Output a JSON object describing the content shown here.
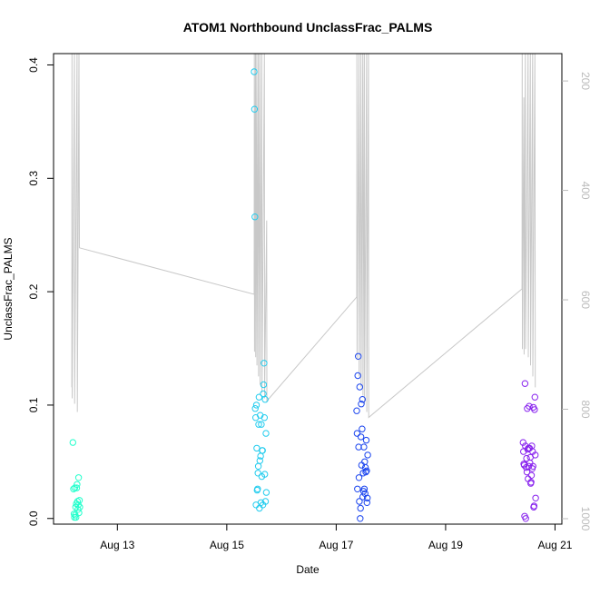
{
  "chart_data": {
    "type": "scatter",
    "title": "ATOM1 Northbound UnclassFrac_PALMS",
    "xlabel": "Date",
    "ylabel": "UnclassFrac_PALMS",
    "x_axis": {
      "type": "date",
      "range": [
        "2016-08-11T20:00",
        "2016-08-21T03:00"
      ],
      "ticks": [
        {
          "value": "2016-08-13",
          "label": "Aug 13"
        },
        {
          "value": "2016-08-15",
          "label": "Aug 15"
        },
        {
          "value": "2016-08-17",
          "label": "Aug 17"
        },
        {
          "value": "2016-08-19",
          "label": "Aug 19"
        },
        {
          "value": "2016-08-21",
          "label": "Aug 21"
        }
      ]
    },
    "y_axis": {
      "range": [
        -0.005,
        0.41
      ],
      "ticks": [
        {
          "value": 0.0,
          "label": "0.0"
        },
        {
          "value": 0.1,
          "label": "0.1"
        },
        {
          "value": 0.2,
          "label": "0.2"
        },
        {
          "value": 0.3,
          "label": "0.3"
        },
        {
          "value": 0.4,
          "label": "0.4"
        }
      ]
    },
    "y2_axis": {
      "reversed": true,
      "range": [
        1010,
        150
      ],
      "color": "#bbbbbb",
      "ticks": [
        {
          "value": 200,
          "label": "200"
        },
        {
          "value": 400,
          "label": "400"
        },
        {
          "value": 600,
          "label": "600"
        },
        {
          "value": 800,
          "label": "800"
        },
        {
          "value": 1000,
          "label": "1000"
        }
      ]
    },
    "grid": false,
    "legend": "none",
    "series": [
      {
        "color": "#22ffcc",
        "points": [
          [
            "2016-08-12T04:30",
            0.067
          ],
          [
            "2016-08-12T04:45",
            0.026
          ],
          [
            "2016-08-12T05:00",
            0.004
          ],
          [
            "2016-08-12T05:10",
            0.001
          ],
          [
            "2016-08-12T05:20",
            0.027
          ],
          [
            "2016-08-12T05:30",
            0.003
          ],
          [
            "2016-08-12T05:40",
            0.01
          ],
          [
            "2016-08-12T05:50",
            0.001
          ],
          [
            "2016-08-12T06:00",
            0.013
          ],
          [
            "2016-08-12T06:10",
            0.027
          ],
          [
            "2016-08-12T06:20",
            0.03
          ],
          [
            "2016-08-12T06:30",
            0.015
          ],
          [
            "2016-08-12T06:40",
            0.008
          ],
          [
            "2016-08-12T06:50",
            0.012
          ],
          [
            "2016-08-12T07:00",
            0.036
          ],
          [
            "2016-08-12T07:10",
            0.005
          ],
          [
            "2016-08-12T07:20",
            0.016
          ],
          [
            "2016-08-12T07:30",
            0.01
          ]
        ]
      },
      {
        "color": "#22ccee",
        "points": [
          [
            "2016-08-15T12:00",
            0.394
          ],
          [
            "2016-08-15T12:10",
            0.361
          ],
          [
            "2016-08-15T12:20",
            0.266
          ],
          [
            "2016-08-15T12:30",
            0.097
          ],
          [
            "2016-08-15T12:40",
            0.089
          ],
          [
            "2016-08-15T12:50",
            0.012
          ],
          [
            "2016-08-15T13:00",
            0.1
          ],
          [
            "2016-08-15T13:10",
            0.062
          ],
          [
            "2016-08-15T13:20",
            0.025
          ],
          [
            "2016-08-15T13:30",
            0.026
          ],
          [
            "2016-08-15T13:40",
            0.04
          ],
          [
            "2016-08-15T13:50",
            0.046
          ],
          [
            "2016-08-15T14:00",
            0.083
          ],
          [
            "2016-08-15T14:10",
            0.107
          ],
          [
            "2016-08-15T14:20",
            0.009
          ],
          [
            "2016-08-15T14:30",
            0.051
          ],
          [
            "2016-08-15T14:40",
            0.091
          ],
          [
            "2016-08-15T14:50",
            0.055
          ],
          [
            "2016-08-15T15:00",
            0.014
          ],
          [
            "2016-08-15T15:10",
            0.083
          ],
          [
            "2016-08-15T15:20",
            0.037
          ],
          [
            "2016-08-15T15:30",
            0.06
          ],
          [
            "2016-08-15T15:40",
            0.06
          ],
          [
            "2016-08-15T15:50",
            0.012
          ],
          [
            "2016-08-15T16:00",
            0.11
          ],
          [
            "2016-08-15T16:10",
            0.118
          ],
          [
            "2016-08-15T16:20",
            0.137
          ],
          [
            "2016-08-15T16:30",
            0.089
          ],
          [
            "2016-08-15T16:40",
            0.039
          ],
          [
            "2016-08-15T16:50",
            0.105
          ],
          [
            "2016-08-15T17:00",
            0.015
          ],
          [
            "2016-08-15T17:10",
            0.075
          ],
          [
            "2016-08-15T17:20",
            0.023
          ]
        ]
      },
      {
        "color": "#1a44ee",
        "points": [
          [
            "2016-08-17T09:00",
            0.095
          ],
          [
            "2016-08-17T09:10",
            0.075
          ],
          [
            "2016-08-17T09:20",
            0.026
          ],
          [
            "2016-08-17T09:30",
            0.126
          ],
          [
            "2016-08-17T09:40",
            0.143
          ],
          [
            "2016-08-17T09:50",
            0.063
          ],
          [
            "2016-08-17T10:00",
            0.036
          ],
          [
            "2016-08-17T10:10",
            0.015
          ],
          [
            "2016-08-17T10:20",
            0.116
          ],
          [
            "2016-08-17T10:30",
            0.0
          ],
          [
            "2016-08-17T10:40",
            0.009
          ],
          [
            "2016-08-17T10:50",
            0.072
          ],
          [
            "2016-08-17T11:00",
            0.101
          ],
          [
            "2016-08-17T11:10",
            0.047
          ],
          [
            "2016-08-17T11:20",
            0.079
          ],
          [
            "2016-08-17T11:30",
            0.105
          ],
          [
            "2016-08-17T11:40",
            0.019
          ],
          [
            "2016-08-17T11:50",
            0.04
          ],
          [
            "2016-08-17T12:00",
            0.024
          ],
          [
            "2016-08-17T12:10",
            0.063
          ],
          [
            "2016-08-17T12:20",
            0.026
          ],
          [
            "2016-08-17T12:30",
            0.05
          ],
          [
            "2016-08-17T12:40",
            0.022
          ],
          [
            "2016-08-17T12:50",
            0.045
          ],
          [
            "2016-08-17T13:00",
            0.041
          ],
          [
            "2016-08-17T13:10",
            0.069
          ],
          [
            "2016-08-17T13:20",
            0.042
          ],
          [
            "2016-08-17T13:30",
            0.014
          ],
          [
            "2016-08-17T13:40",
            0.018
          ],
          [
            "2016-08-17T13:50",
            0.056
          ]
        ]
      },
      {
        "color": "#8822ee",
        "points": [
          [
            "2016-08-20T10:00",
            0.067
          ],
          [
            "2016-08-20T10:10",
            0.059
          ],
          [
            "2016-08-20T10:20",
            0.048
          ],
          [
            "2016-08-20T10:30",
            0.047
          ],
          [
            "2016-08-20T10:40",
            0.002
          ],
          [
            "2016-08-20T10:50",
            0.119
          ],
          [
            "2016-08-20T11:00",
            0.064
          ],
          [
            "2016-08-20T11:10",
            0.0
          ],
          [
            "2016-08-20T11:20",
            0.045
          ],
          [
            "2016-08-20T11:30",
            0.053
          ],
          [
            "2016-08-20T11:40",
            0.041
          ],
          [
            "2016-08-20T11:50",
            0.097
          ],
          [
            "2016-08-20T12:00",
            0.061
          ],
          [
            "2016-08-20T12:10",
            0.035
          ],
          [
            "2016-08-20T12:20",
            0.062
          ],
          [
            "2016-08-20T12:30",
            0.046
          ],
          [
            "2016-08-20T12:40",
            0.099
          ],
          [
            "2016-08-20T12:50",
            0.062
          ],
          [
            "2016-08-20T13:00",
            0.049
          ],
          [
            "2016-08-20T13:10",
            0.054
          ],
          [
            "2016-08-20T13:20",
            0.031
          ],
          [
            "2016-08-20T13:30",
            0.032
          ],
          [
            "2016-08-20T13:40",
            0.038
          ],
          [
            "2016-08-20T13:50",
            0.064
          ],
          [
            "2016-08-20T14:00",
            0.044
          ],
          [
            "2016-08-20T14:10",
            0.059
          ],
          [
            "2016-08-20T14:20",
            0.046
          ],
          [
            "2016-08-20T14:30",
            0.098
          ],
          [
            "2016-08-20T14:40",
            0.01
          ],
          [
            "2016-08-20T14:50",
            0.011
          ],
          [
            "2016-08-20T15:00",
            0.096
          ],
          [
            "2016-08-20T15:10",
            0.107
          ],
          [
            "2016-08-20T15:20",
            0.056
          ],
          [
            "2016-08-20T15:30",
            0.018
          ]
        ]
      }
    ],
    "y2_line": {
      "color": "#c8c8c8",
      "points": [
        [
          "2016-08-12T04:00",
          760
        ],
        [
          "2016-08-12T04:05",
          149
        ],
        [
          "2016-08-12T04:10",
          780
        ],
        [
          "2016-08-12T05:10",
          150
        ],
        [
          "2016-08-12T05:15",
          790
        ],
        [
          "2016-08-12T06:20",
          150
        ],
        [
          "2016-08-12T06:25",
          805
        ],
        [
          "2016-08-12T07:10",
          150
        ],
        [
          "2016-08-12T07:20",
          505
        ],
        [
          "2016-08-15T12:00",
          590
        ],
        [
          "2016-08-15T12:05",
          150
        ],
        [
          "2016-08-15T12:10",
          695
        ],
        [
          "2016-08-15T12:35",
          150
        ],
        [
          "2016-08-15T12:40",
          705
        ],
        [
          "2016-08-15T13:10",
          150
        ],
        [
          "2016-08-15T13:15",
          720
        ],
        [
          "2016-08-15T13:50",
          150
        ],
        [
          "2016-08-15T13:55",
          740
        ],
        [
          "2016-08-15T14:30",
          150
        ],
        [
          "2016-08-15T14:35",
          755
        ],
        [
          "2016-08-15T15:20",
          150
        ],
        [
          "2016-08-15T15:25",
          770
        ],
        [
          "2016-08-15T16:30",
          150
        ],
        [
          "2016-08-15T16:35",
          780
        ],
        [
          "2016-08-15T17:30",
          455
        ],
        [
          "2016-08-15T17:35",
          785
        ],
        [
          "2016-08-17T09:00",
          595
        ],
        [
          "2016-08-17T09:05",
          150
        ],
        [
          "2016-08-17T09:10",
          710
        ],
        [
          "2016-08-17T10:00",
          150
        ],
        [
          "2016-08-17T10:05",
          740
        ],
        [
          "2016-08-17T10:50",
          150
        ],
        [
          "2016-08-17T10:55",
          760
        ],
        [
          "2016-08-17T11:40",
          150
        ],
        [
          "2016-08-17T11:45",
          775
        ],
        [
          "2016-08-17T12:20",
          150
        ],
        [
          "2016-08-17T12:25",
          790
        ],
        [
          "2016-08-17T13:20",
          150
        ],
        [
          "2016-08-17T13:25",
          805
        ],
        [
          "2016-08-17T14:10",
          150
        ],
        [
          "2016-08-17T14:15",
          815
        ],
        [
          "2016-08-20T09:30",
          580
        ],
        [
          "2016-08-20T09:35",
          150
        ],
        [
          "2016-08-20T09:40",
          690
        ],
        [
          "2016-08-20T10:20",
          230
        ],
        [
          "2016-08-20T10:25",
          700
        ],
        [
          "2016-08-20T11:00",
          150
        ],
        [
          "2016-08-20T11:05",
          690
        ],
        [
          "2016-08-20T12:10",
          150
        ],
        [
          "2016-08-20T12:15",
          705
        ],
        [
          "2016-08-20T13:10",
          150
        ],
        [
          "2016-08-20T13:15",
          720
        ],
        [
          "2016-08-20T14:10",
          150
        ],
        [
          "2016-08-20T14:15",
          740
        ],
        [
          "2016-08-20T15:10",
          150
        ],
        [
          "2016-08-20T15:20",
          760
        ]
      ]
    }
  }
}
